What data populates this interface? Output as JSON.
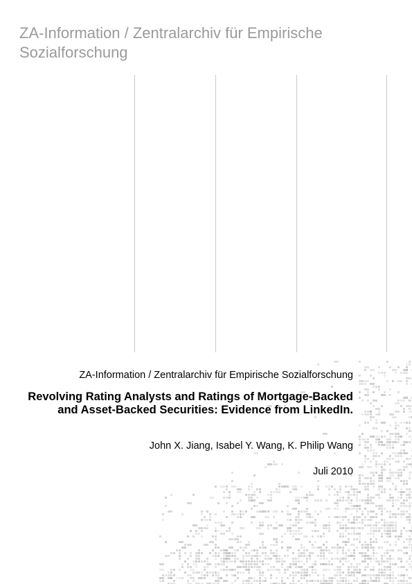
{
  "header": {
    "title": "ZA-Information / Zentralarchiv für Empirische Sozialforschung"
  },
  "cover": {
    "publisher": "ZA-Information / Zentralarchiv für Empirische Sozialforschung",
    "title": "Revolving Rating Analysts and Ratings of Mortgage-Backed and Asset-Backed Securities: Evidence from LinkedIn.",
    "authors": "John X. Jiang, Isabel Y. Wang, K. Philip Wang",
    "date": "Juli 2010"
  },
  "colors": {
    "header_text": "#9a9a9a",
    "rule_lines": "#c9c9c9",
    "pattern": "#b8b8b8"
  }
}
